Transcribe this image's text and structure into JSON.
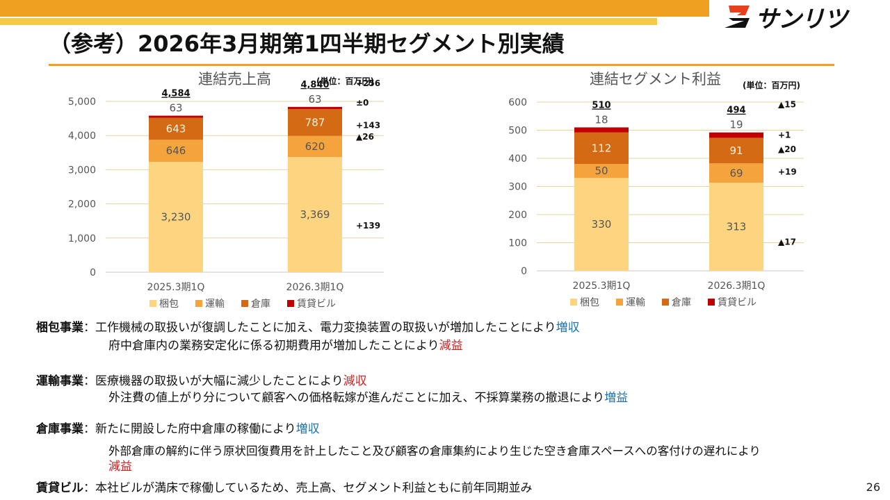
{
  "header": {
    "title": "（参考）2026年3月期第1四半期セグメント別実績",
    "logo_text": "サンリツ"
  },
  "colors": {
    "konpo": "#fdd580",
    "unyu": "#f5a33c",
    "soko": "#d46a14",
    "chintai": "#c00000",
    "increase": "#1f6fb2",
    "decrease": "#d42020"
  },
  "chart_data": [
    {
      "type": "bar",
      "stacked": true,
      "title": "連結売上高",
      "unit_label": "(単位：百万円)",
      "categories": [
        "2025.3期1Q",
        "2026.3期1Q"
      ],
      "series": [
        {
          "name": "梱包",
          "values": [
            3230,
            3369
          ],
          "labels": [
            "3,230",
            "3,369"
          ]
        },
        {
          "name": "運輸",
          "values": [
            646,
            620
          ],
          "labels": [
            "646",
            "620"
          ]
        },
        {
          "name": "倉庫",
          "values": [
            643,
            787
          ],
          "labels": [
            "643",
            "787"
          ]
        },
        {
          "name": "賃貸ビル",
          "values": [
            63,
            63
          ],
          "labels": [
            "63",
            "63"
          ]
        }
      ],
      "totals": [
        "4,584",
        "4,840"
      ],
      "diffs": {
        "total": "+256",
        "chintai": "±0",
        "soko": "+143",
        "unyu": "▲26",
        "konpo": "+139"
      },
      "yticks": [
        "0",
        "1,000",
        "2,000",
        "3,000",
        "4,000",
        "5,000"
      ],
      "ylim": [
        0,
        5000
      ],
      "ystep": 1000,
      "grid": true,
      "legend": "bottom"
    },
    {
      "type": "bar",
      "stacked": true,
      "title": "連結セグメント利益",
      "unit_label": "(単位：百万円)",
      "categories": [
        "2025.3期1Q",
        "2026.3期1Q"
      ],
      "series": [
        {
          "name": "梱包",
          "values": [
            330,
            313
          ],
          "labels": [
            "330",
            "313"
          ]
        },
        {
          "name": "運輸",
          "values": [
            50,
            69
          ],
          "labels": [
            "50",
            "69"
          ]
        },
        {
          "name": "倉庫",
          "values": [
            112,
            91
          ],
          "labels": [
            "112",
            "91"
          ]
        },
        {
          "name": "賃貸ビル",
          "values": [
            18,
            19
          ],
          "labels": [
            "18",
            "19"
          ]
        }
      ],
      "totals": [
        "510",
        "494"
      ],
      "diffs": {
        "total": "▲15",
        "chintai": "+1",
        "soko": "▲20",
        "unyu": "+19",
        "konpo": "▲17"
      },
      "yticks": [
        "0",
        "100",
        "200",
        "300",
        "400",
        "500",
        "600"
      ],
      "ylim": [
        0,
        600
      ],
      "ystep": 100,
      "grid": true,
      "legend": "bottom"
    }
  ],
  "notes": {
    "konpo": {
      "label": "梱包事業",
      "sep": "：",
      "line1": "工作機械の取扱いが復調したことに加え、電力変換装置の取扱いが増加したことにより",
      "line1_tag": "増収",
      "line2": "府中倉庫内の業務安定化に係る初期費用が増加したことにより",
      "line2_tag": "減益"
    },
    "unyu": {
      "label": "運輸事業",
      "sep": "：",
      "line1": "医療機器の取扱いが大幅に減少したことにより",
      "line1_tag": "減収",
      "line2": "外注費の値上がり分について顧客への価格転嫁が進んだことに加え、不採算業務の撤退により",
      "line2_tag": "増益"
    },
    "soko": {
      "label": "倉庫事業",
      "sep": "：",
      "line1": "新たに開設した府中倉庫の稼働により",
      "line1_tag": "増収",
      "line2": "外部倉庫の解約に伴う原状回復費用を計上したこと及び顧客の倉庫集約により生じた空き倉庫スペースへの客付けの遅れにより",
      "line3_tag": "減益"
    },
    "chintai": {
      "label": "賃貸ビル",
      "sep": "：",
      "line1": "本社ビルが満床で稼働しているため、売上高、セグメント利益ともに前年同期並み"
    }
  },
  "page_number": "26"
}
